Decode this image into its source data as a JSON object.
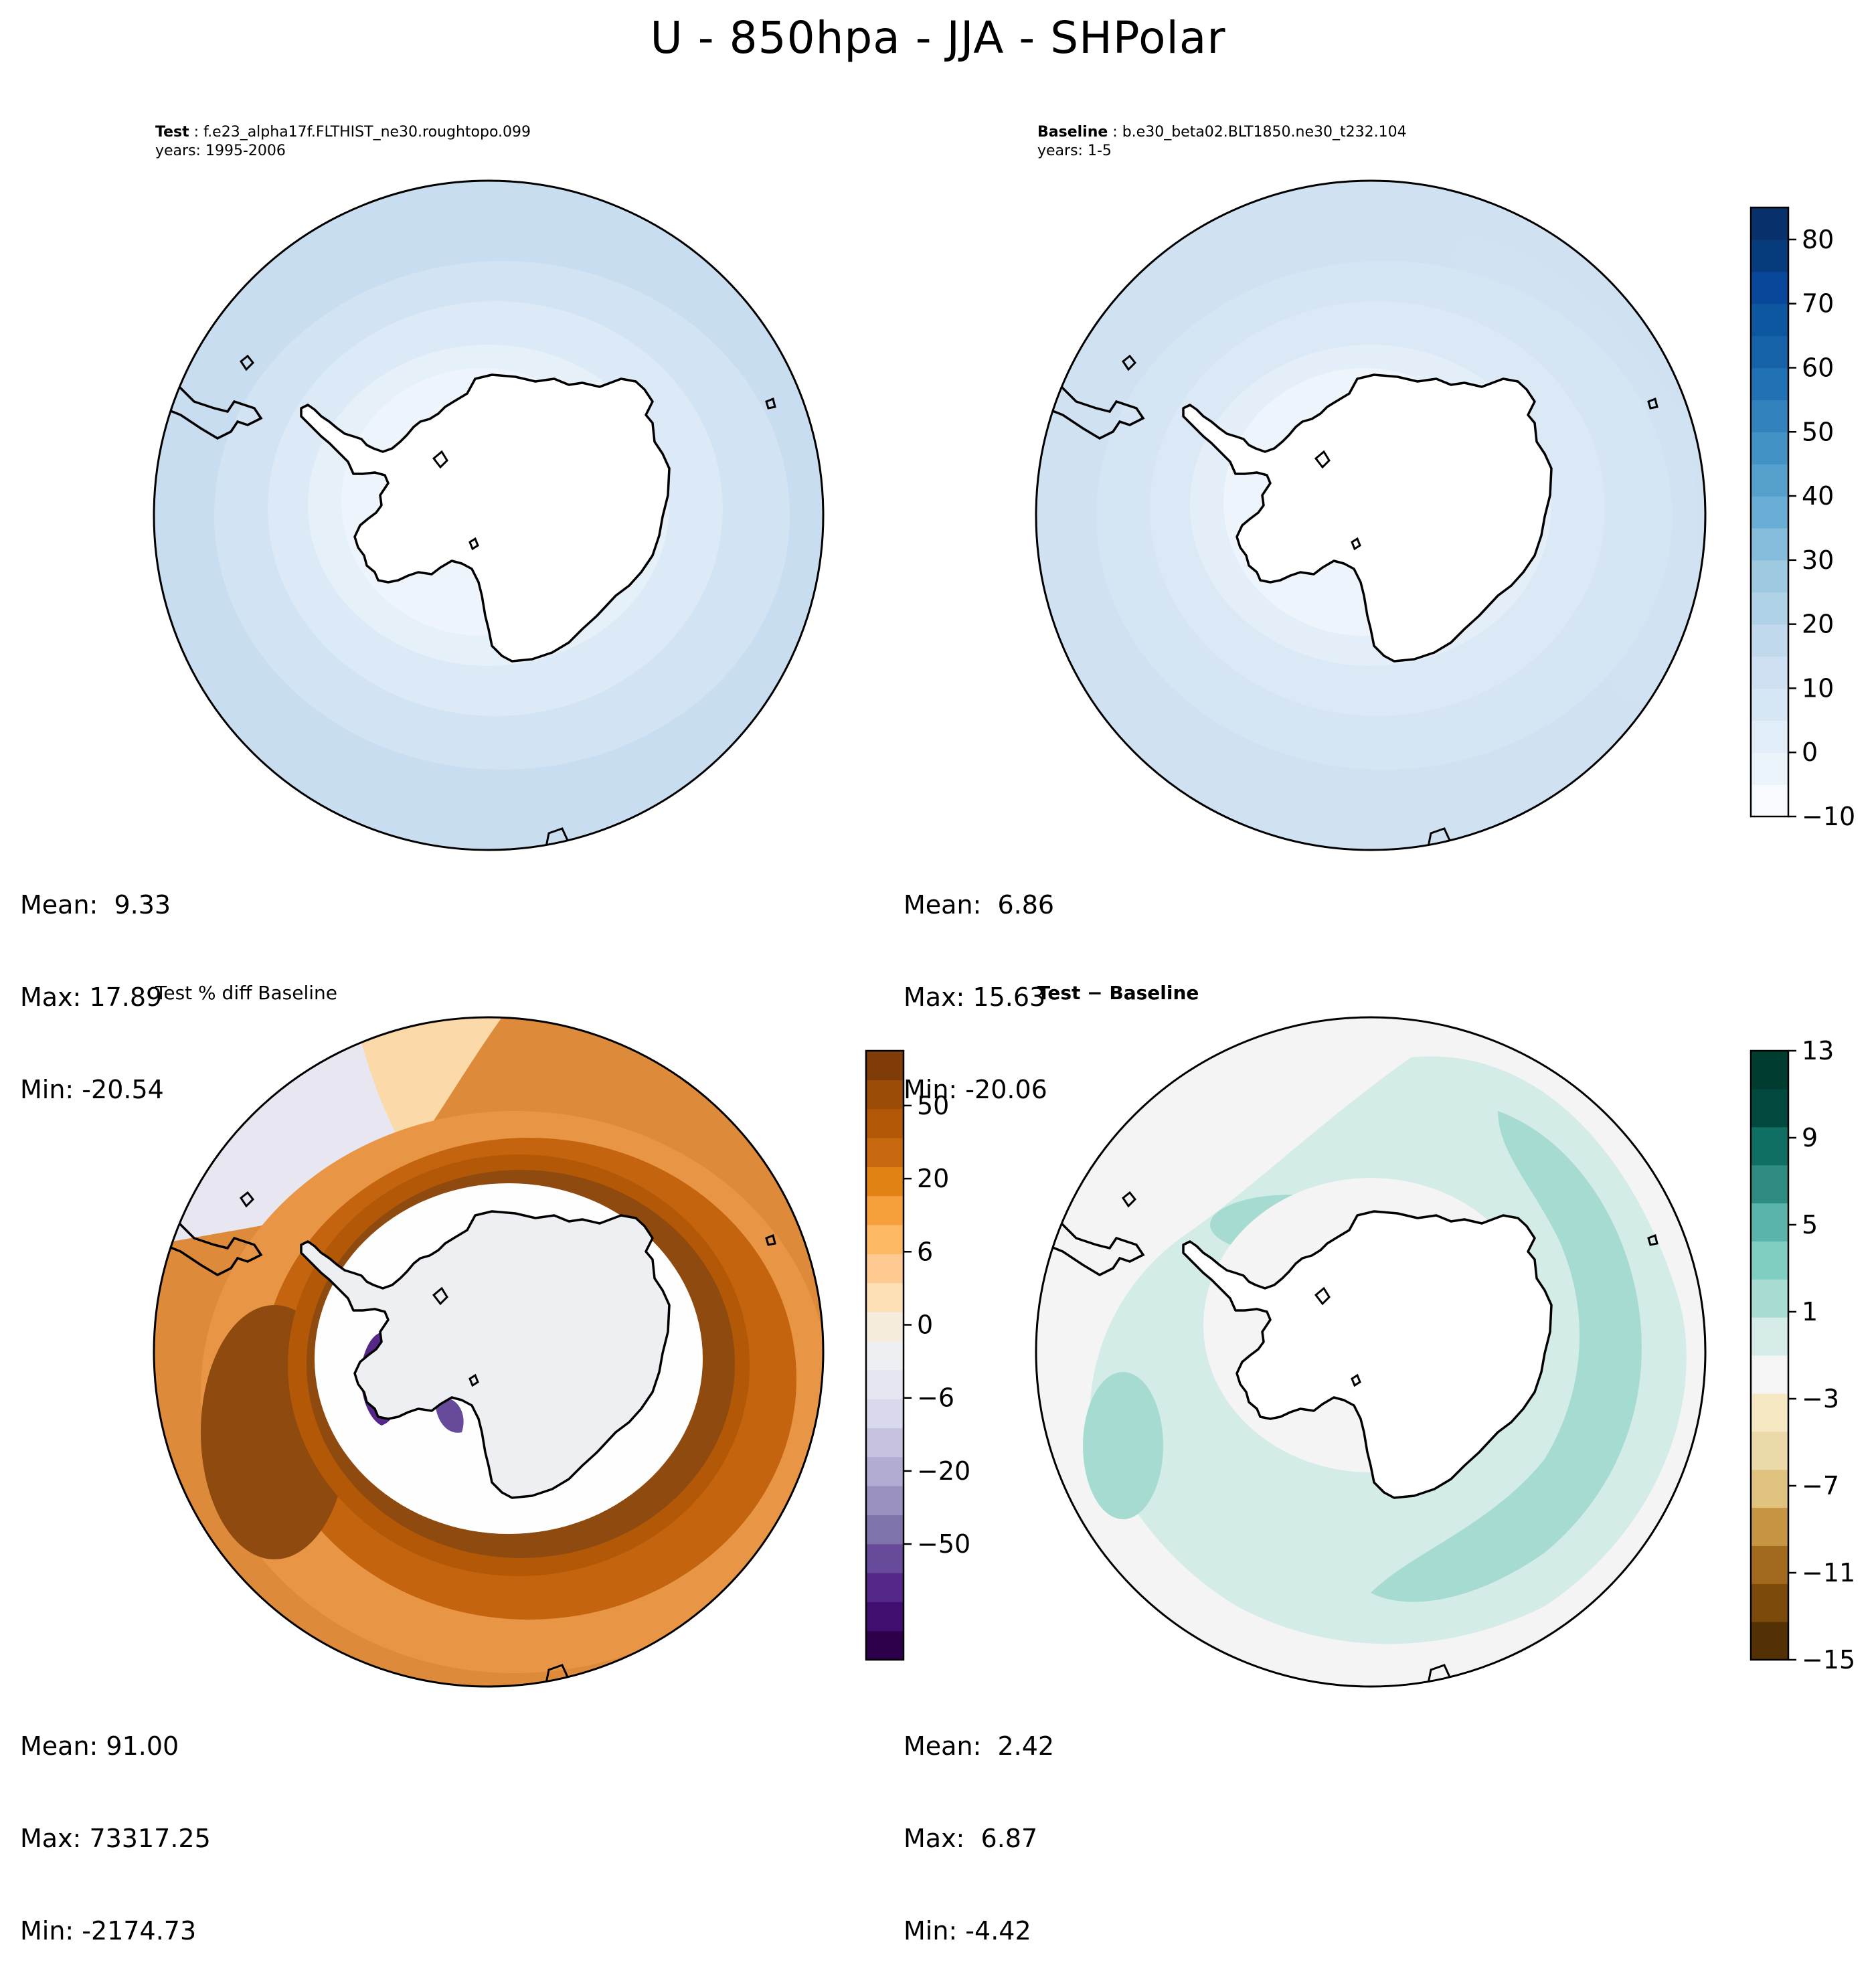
{
  "title": "U - 850hpa - JJA - SHPolar",
  "panels": {
    "test": {
      "label": "Test",
      "case": "f.e23_alpha17f.FLTHIST_ne30.roughtopo.099",
      "years": "years: 1995-2006",
      "mean": "Mean:  9.33",
      "max": "Max: 17.89",
      "min": "Min: -20.54"
    },
    "baseline": {
      "label": "Baseline",
      "case": "b.e30_beta02.BLT1850.ne30_t232.104",
      "years": "years: 1-5",
      "mean": "Mean:  6.86",
      "max": "Max: 15.63",
      "min": "Min: -20.06"
    },
    "pct_diff": {
      "title": "Test % diff Baseline",
      "mean": "Mean: 91.00",
      "max": "Max: 73317.25",
      "min": "Min: -2174.73"
    },
    "diff": {
      "title": "Test − Baseline",
      "mean": "Mean:  2.42",
      "max": "Max:  6.87",
      "min": "Min: -4.42"
    }
  },
  "colorbars": {
    "main": {
      "levels": [
        -10,
        -5,
        0,
        5,
        10,
        15,
        20,
        25,
        30,
        35,
        40,
        45,
        50,
        55,
        60,
        65,
        70,
        75,
        80,
        85
      ],
      "ticks": [
        "80",
        "70",
        "60",
        "50",
        "40",
        "30",
        "20",
        "10",
        "0",
        "−10"
      ],
      "colors": [
        "#f7fbff",
        "#ebf3fb",
        "#e1edf8",
        "#d7e6f5",
        "#cddff1",
        "#c1d9ed",
        "#b0d2e7",
        "#9ecae1",
        "#86bcdc",
        "#6aaed6",
        "#56a0ce",
        "#4292c6",
        "#3282be",
        "#2171b5",
        "#1763aa",
        "#0d57a1",
        "#08479a",
        "#083b7c",
        "#08306b"
      ]
    },
    "pct": {
      "ticks": [
        "50",
        "20",
        "6",
        "0",
        "−6",
        "−20",
        "−50"
      ],
      "colors": [
        "#2d004b",
        "#3f0e6e",
        "#542788",
        "#674b9a",
        "#8073ac",
        "#9a91c1",
        "#b2abd2",
        "#c7c2e0",
        "#d8daeb",
        "#e6e6f0",
        "#eeeff3",
        "#f6ecdc",
        "#fee0b6",
        "#fdc990",
        "#fdb863",
        "#f6a03d",
        "#e08214",
        "#c9690f",
        "#b35806",
        "#9b4c07",
        "#7f3b08"
      ]
    },
    "diff": {
      "ticks": [
        "13",
        "9",
        "5",
        "1",
        "−3",
        "−7",
        "−11",
        "−15"
      ],
      "colors": [
        "#543005",
        "#7c4a0b",
        "#a36a1f",
        "#c69544",
        "#dfc27d",
        "#ecd9a9",
        "#f6e8c3",
        "#f5f5f5",
        "#d5ece8",
        "#a8dcd2",
        "#80cdc1",
        "#5ab4ac",
        "#2e8c83",
        "#0f6f63",
        "#01493f",
        "#003c30"
      ]
    }
  },
  "map_fields": {
    "test_bands": [
      "#c9ddf0",
      "#d2e3f3",
      "#dce9f6",
      "#e6f0f9",
      "#edf4fb"
    ],
    "baseline_bands": [
      "#d0e2f2",
      "#d5e5f4",
      "#dbe8f5",
      "#e3eef8",
      "#edf4fb"
    ],
    "pct_bands": [
      "#dd8a3a",
      "#e89645",
      "#c5640f",
      "#b25807",
      "#8f4a10",
      "#fefefe"
    ],
    "diff_bands": [
      "#d4ece8",
      "#a6dbd1",
      "#f3f4f3"
    ]
  }
}
